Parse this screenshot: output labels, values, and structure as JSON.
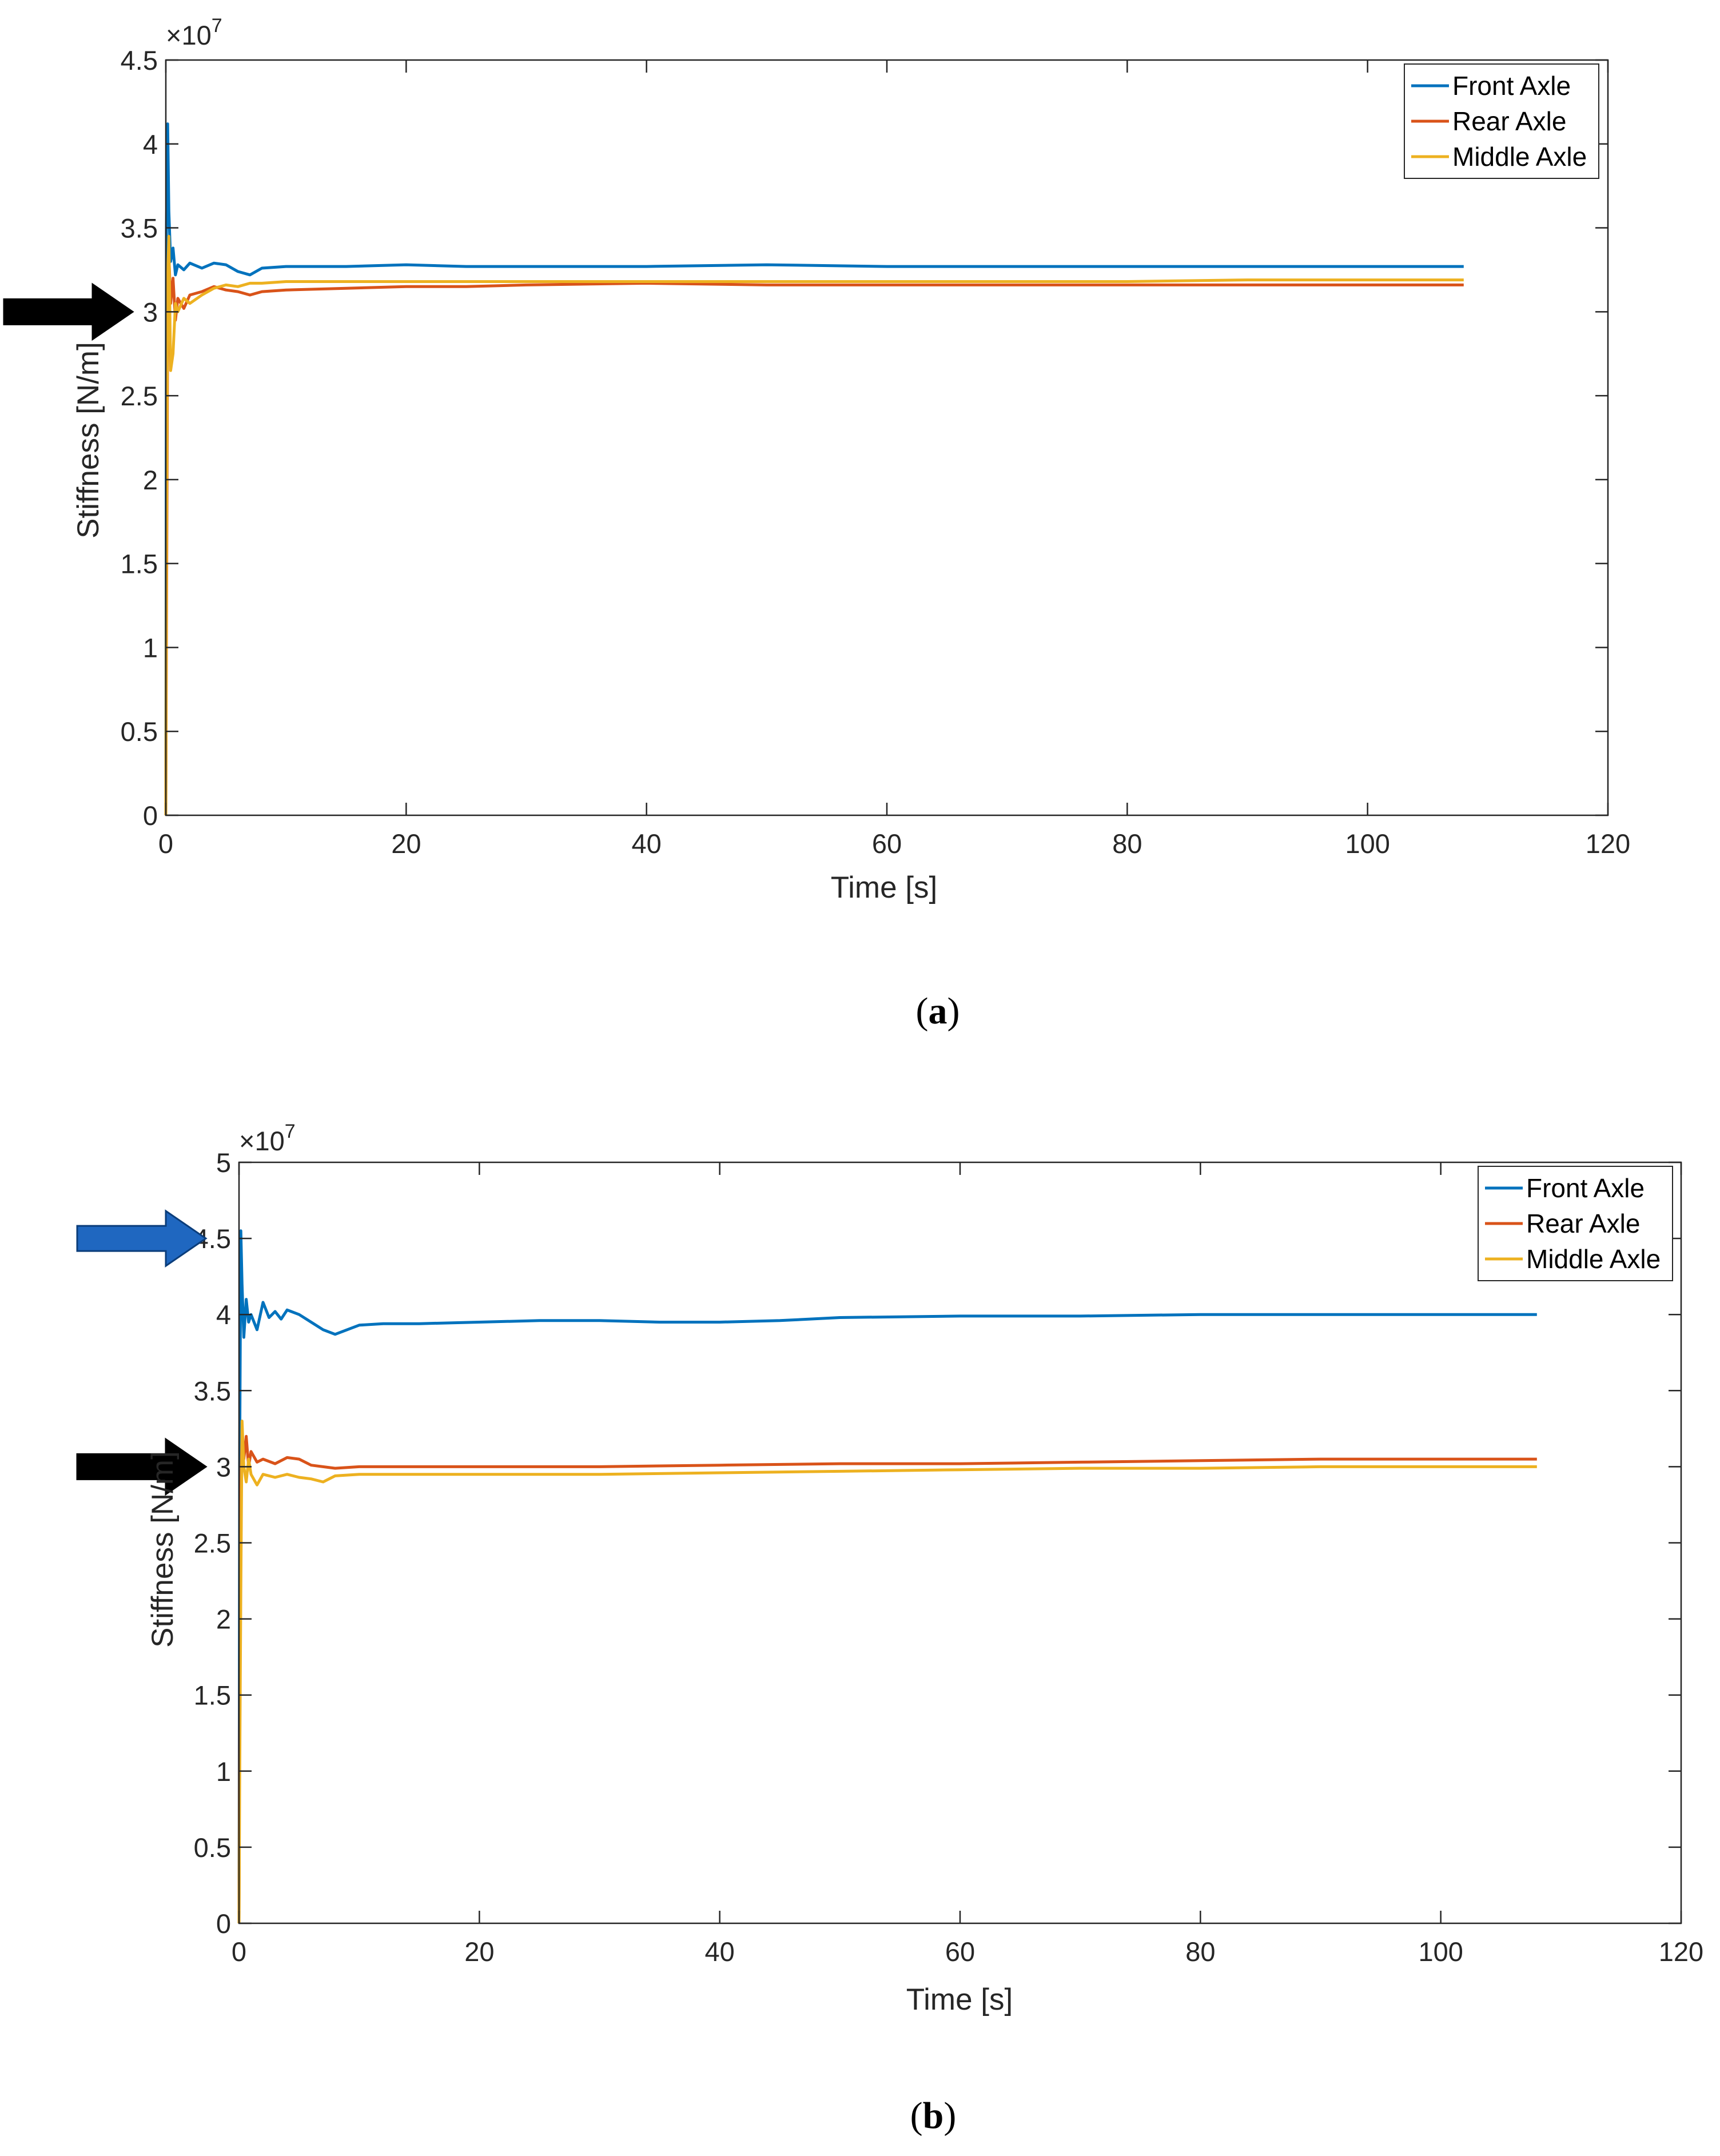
{
  "chart_data": [
    {
      "type": "line",
      "panel": "a",
      "caption": {
        "open": "(",
        "letter": "a",
        "close": ")"
      },
      "xlabel": "Time [s]",
      "ylabel": "Stiffness [N/m]",
      "multiplier": {
        "base": "×10",
        "exponent": "7"
      },
      "xlim": [
        0,
        120
      ],
      "ylim": [
        0,
        4.5
      ],
      "xticks": [
        0,
        20,
        40,
        60,
        80,
        100,
        120
      ],
      "xtick_labels": [
        "0",
        "20",
        "40",
        "60",
        "80",
        "100",
        "120"
      ],
      "yticks": [
        0,
        0.5,
        1,
        1.5,
        2,
        2.5,
        3,
        3.5,
        4,
        4.5
      ],
      "ytick_labels": [
        "0",
        "0.5",
        "1",
        "1.5",
        "2",
        "2.5",
        "3",
        "3.5",
        "4",
        "4.5"
      ],
      "legend_position": "top-right",
      "arrows": [
        {
          "y": 3.0,
          "color": "#000000"
        }
      ],
      "series": [
        {
          "name": "Front Axle",
          "color": "#0072BD",
          "x": [
            0,
            0.05,
            0.15,
            0.25,
            0.4,
            0.6,
            0.8,
            1.0,
            1.5,
            2,
            3,
            4,
            5,
            6,
            7,
            8,
            10,
            15,
            20,
            25,
            30,
            40,
            50,
            60,
            70,
            80,
            90,
            100,
            108
          ],
          "y": [
            0,
            3.5,
            4.12,
            3.6,
            3.3,
            3.38,
            3.22,
            3.28,
            3.25,
            3.29,
            3.26,
            3.29,
            3.28,
            3.24,
            3.22,
            3.26,
            3.27,
            3.27,
            3.28,
            3.27,
            3.27,
            3.27,
            3.28,
            3.27,
            3.27,
            3.27,
            3.27,
            3.27,
            3.27
          ]
        },
        {
          "name": "Rear Axle",
          "color": "#D95319",
          "x": [
            0,
            0.05,
            0.15,
            0.25,
            0.4,
            0.6,
            0.8,
            1.0,
            1.5,
            2,
            3,
            4,
            5,
            6,
            7,
            8,
            10,
            15,
            20,
            25,
            30,
            40,
            50,
            60,
            70,
            80,
            90,
            100,
            108
          ],
          "y": [
            0,
            1.1,
            2.9,
            3.35,
            3.05,
            3.2,
            2.95,
            3.08,
            3.02,
            3.1,
            3.12,
            3.15,
            3.13,
            3.12,
            3.1,
            3.12,
            3.13,
            3.14,
            3.15,
            3.15,
            3.16,
            3.17,
            3.16,
            3.16,
            3.16,
            3.16,
            3.16,
            3.16,
            3.16
          ]
        },
        {
          "name": "Middle Axle",
          "color": "#EDB120",
          "x": [
            0,
            0.05,
            0.15,
            0.25,
            0.4,
            0.6,
            0.8,
            1.0,
            1.5,
            2,
            3,
            4,
            5,
            6,
            7,
            8,
            10,
            15,
            20,
            25,
            30,
            40,
            50,
            60,
            70,
            80,
            90,
            100,
            108
          ],
          "y": [
            0,
            1.6,
            3.2,
            3.45,
            2.65,
            2.75,
            3.05,
            3.0,
            3.08,
            3.05,
            3.1,
            3.14,
            3.16,
            3.15,
            3.17,
            3.17,
            3.18,
            3.18,
            3.18,
            3.18,
            3.18,
            3.18,
            3.18,
            3.18,
            3.18,
            3.18,
            3.19,
            3.19,
            3.19
          ]
        }
      ]
    },
    {
      "type": "line",
      "panel": "b",
      "caption": {
        "open": "(",
        "letter": "b",
        "close": ")"
      },
      "xlabel": "Time [s]",
      "ylabel": "Stiffness [N/m]",
      "multiplier": {
        "base": "×10",
        "exponent": "7"
      },
      "xlim": [
        0,
        120
      ],
      "ylim": [
        0,
        5
      ],
      "xticks": [
        0,
        20,
        40,
        60,
        80,
        100,
        120
      ],
      "xtick_labels": [
        "0",
        "20",
        "40",
        "60",
        "80",
        "100",
        "120"
      ],
      "yticks": [
        0,
        0.5,
        1,
        1.5,
        2,
        2.5,
        3,
        3.5,
        4,
        4.5,
        5
      ],
      "ytick_labels": [
        "0",
        "0.5",
        "1",
        "1.5",
        "2",
        "2.5",
        "3",
        "3.5",
        "4",
        "4.5",
        "5"
      ],
      "legend_position": "top-right",
      "arrows": [
        {
          "y": 4.5,
          "color": "#1F67C0"
        },
        {
          "y": 3.0,
          "color": "#000000"
        }
      ],
      "series": [
        {
          "name": "Front Axle",
          "color": "#0072BD",
          "x": [
            0,
            0.05,
            0.15,
            0.25,
            0.4,
            0.6,
            0.8,
            1.0,
            1.5,
            2,
            2.5,
            3,
            3.5,
            4,
            5,
            6,
            7,
            8,
            9,
            10,
            12,
            15,
            20,
            25,
            30,
            35,
            40,
            45,
            50,
            60,
            70,
            80,
            90,
            100,
            108
          ],
          "y": [
            0,
            3.0,
            4.55,
            4.2,
            3.85,
            4.1,
            3.95,
            4.0,
            3.9,
            4.08,
            3.98,
            4.02,
            3.97,
            4.03,
            4.0,
            3.95,
            3.9,
            3.87,
            3.9,
            3.93,
            3.94,
            3.94,
            3.95,
            3.96,
            3.96,
            3.95,
            3.95,
            3.96,
            3.98,
            3.99,
            3.99,
            4.0,
            4.0,
            4.0,
            4.0
          ]
        },
        {
          "name": "Rear Axle",
          "color": "#D95319",
          "x": [
            0,
            0.05,
            0.15,
            0.25,
            0.4,
            0.6,
            0.8,
            1.0,
            1.5,
            2,
            3,
            4,
            5,
            6,
            8,
            10,
            15,
            20,
            25,
            30,
            40,
            50,
            60,
            70,
            80,
            90,
            100,
            108
          ],
          "y": [
            0,
            1.5,
            2.8,
            3.25,
            3.05,
            3.2,
            3.0,
            3.1,
            3.03,
            3.05,
            3.02,
            3.06,
            3.05,
            3.01,
            2.99,
            3.0,
            3.0,
            3.0,
            3.0,
            3.0,
            3.01,
            3.02,
            3.02,
            3.03,
            3.04,
            3.05,
            3.05,
            3.05
          ]
        },
        {
          "name": "Middle Axle",
          "color": "#EDB120",
          "x": [
            0,
            0.05,
            0.15,
            0.25,
            0.4,
            0.6,
            0.8,
            1.0,
            1.5,
            2,
            3,
            4,
            5,
            6,
            7,
            8,
            10,
            15,
            20,
            25,
            30,
            40,
            50,
            60,
            70,
            80,
            90,
            100,
            108
          ],
          "y": [
            0,
            0.9,
            2.2,
            3.3,
            3.0,
            2.9,
            3.05,
            2.95,
            2.88,
            2.95,
            2.93,
            2.95,
            2.93,
            2.92,
            2.9,
            2.94,
            2.95,
            2.95,
            2.95,
            2.95,
            2.95,
            2.96,
            2.97,
            2.98,
            2.99,
            2.99,
            3.0,
            3.0,
            3.0
          ]
        }
      ]
    }
  ]
}
